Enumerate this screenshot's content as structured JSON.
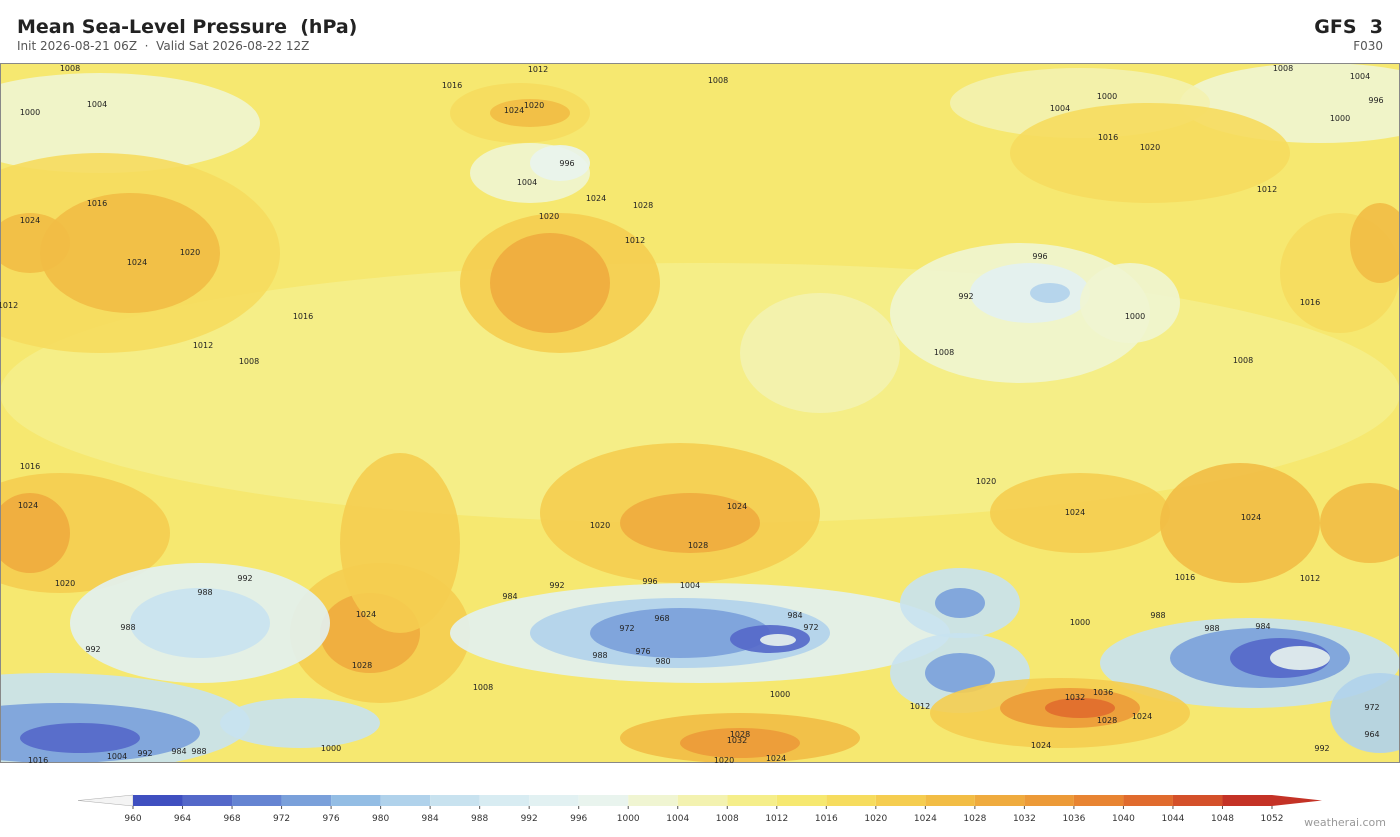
{
  "header": {
    "title": "Mean Sea-Level Pressure  (hPa)",
    "subtitle": "Init 2026-08-21 06Z  ·  Valid Sat 2026-08-22 12Z",
    "model": "GFS  3",
    "step": "F030"
  },
  "map": {
    "contour_labels": [
      1008,
      1012,
      1008,
      1016,
      1008,
      1004,
      996,
      1000,
      1004,
      1000,
      1000,
      1004,
      1024,
      1020,
      996,
      1004,
      1016,
      1020,
      1012,
      1024,
      1024,
      1020,
      1016,
      1012,
      1012,
      1008,
      1016,
      1020,
      1024,
      1028,
      1012,
      996,
      992,
      1000,
      1008,
      1008,
      1016,
      1016,
      1020,
      1024,
      1024,
      1024,
      1024,
      1028,
      1020,
      1020,
      992,
      988,
      992,
      996,
      1004,
      984,
      988,
      992,
      972,
      968,
      984,
      972,
      976,
      980,
      988,
      1000,
      988,
      988,
      984,
      1028,
      1024,
      1008,
      1000,
      1012,
      1032,
      1036,
      1028,
      1024,
      1028,
      1032,
      1024,
      1000,
      1004,
      992,
      984,
      988,
      1016,
      1020,
      1024,
      972,
      964,
      992,
      1016,
      1012
    ]
  },
  "colorbar": {
    "levels": [
      960,
      964,
      968,
      972,
      976,
      980,
      984,
      988,
      992,
      996,
      1000,
      1004,
      1008,
      1012,
      1016,
      1020,
      1024,
      1028,
      1032,
      1036,
      1040,
      1044,
      1048,
      1052
    ],
    "colors": [
      "#3f4fc0",
      "#5468c9",
      "#6584d2",
      "#7aa0da",
      "#93bde4",
      "#b0d2eb",
      "#c8e2ef",
      "#d8ecf2",
      "#e2f1f2",
      "#e9f4ee",
      "#f0f5d2",
      "#f3f2b0",
      "#f5ee8a",
      "#f6e870",
      "#f6dc5e",
      "#f5cd50",
      "#f2bd45",
      "#efab3e",
      "#ec9a38",
      "#e88432",
      "#e06b2e",
      "#d4502a",
      "#c43226"
    ],
    "under_color": "#f4f4f4",
    "over_color": "#c43226"
  },
  "footer": {
    "watermark": "weatherai.com"
  }
}
